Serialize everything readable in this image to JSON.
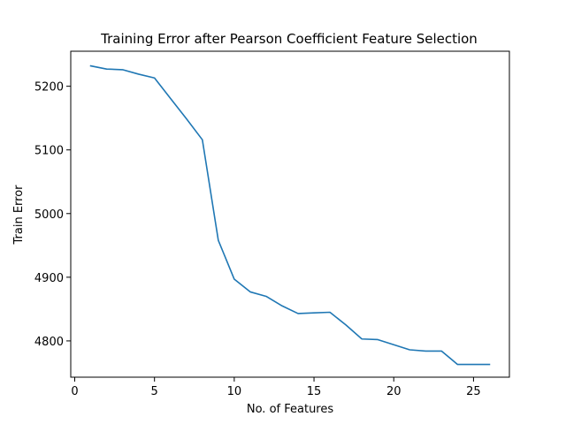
{
  "chart_data": {
    "type": "line",
    "title": "Training Error after Pearson Coefficient Feature Selection",
    "xlabel": "No. of Features",
    "ylabel": "Train Error",
    "xlim": [
      -0.25,
      27.25
    ],
    "ylim": [
      4743,
      5255
    ],
    "xticks": [
      0,
      5,
      10,
      15,
      20,
      25
    ],
    "yticks": [
      4800,
      4900,
      5000,
      5100,
      5200
    ],
    "grid": false,
    "legend": "none",
    "line_color": "#1f77b4",
    "series": [
      {
        "x": [
          1,
          2,
          3,
          4,
          5,
          6,
          7,
          8,
          9,
          10,
          11,
          12,
          13,
          14,
          15,
          16,
          17,
          18,
          19,
          20,
          21,
          22,
          23,
          24,
          25,
          26
        ],
        "y": [
          5232,
          5227,
          5226,
          5219,
          5213,
          5181,
          5149,
          5116,
          4958,
          4897,
          4877,
          4870,
          4855,
          4843,
          4844,
          4845,
          4825,
          4803,
          4802,
          4794,
          4786,
          4784,
          4784,
          4763,
          4763,
          4763
        ]
      }
    ]
  }
}
